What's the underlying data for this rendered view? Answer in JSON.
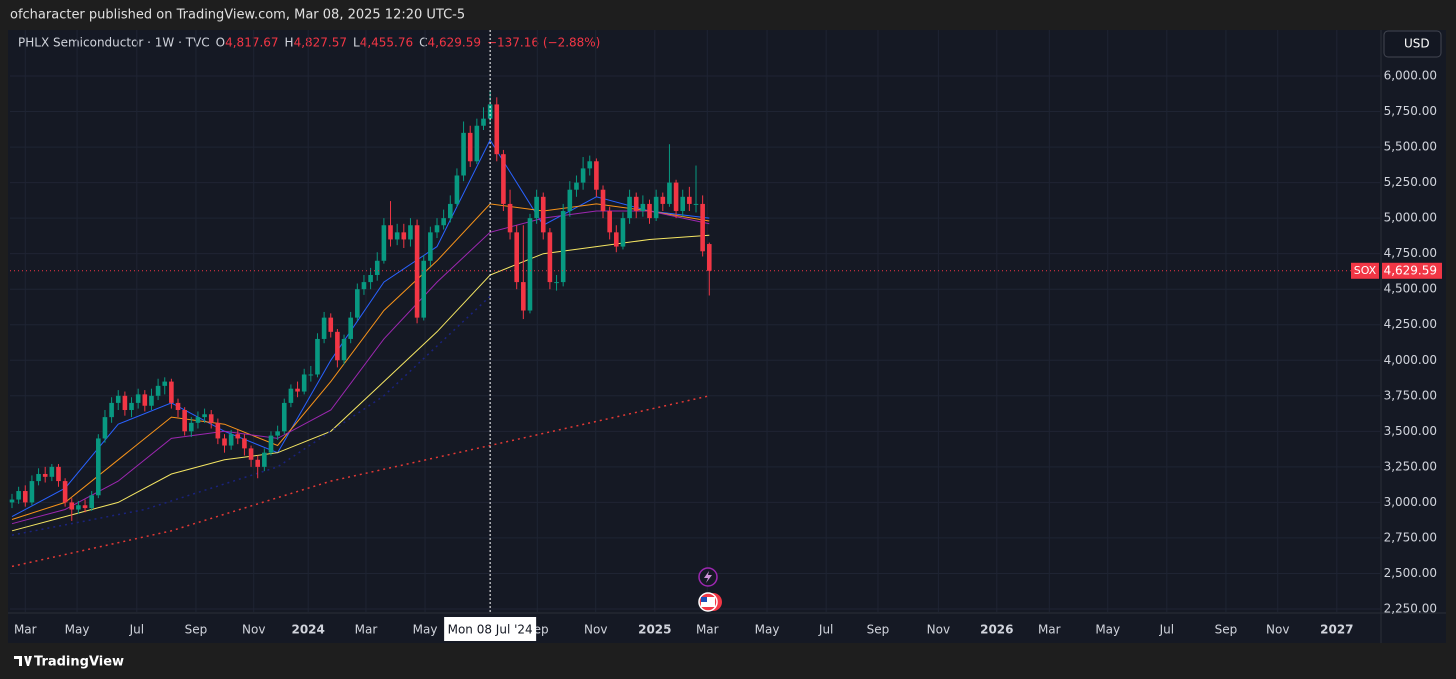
{
  "chart_data": {
    "type": "candlestick",
    "publisher": "ofcharacter published on TradingView.com, Mar 08, 2025 12:20 UTC-5",
    "title": "PHLX Semiconductor · 1W · TVC",
    "legend_values": [
      {
        "label": "O",
        "value": "4,817.67"
      },
      {
        "label": "H",
        "value": "4,827.57"
      },
      {
        "label": "L",
        "value": "4,455.76"
      },
      {
        "label": "C",
        "value": "4,629.59"
      },
      {
        "label": "",
        "value": "−137.16 (−2.88%)"
      }
    ],
    "currency": "USD",
    "symbol": "SOX",
    "crosshair": {
      "x": 72,
      "label": "Mon 08 Jul '24"
    },
    "brand": "TradingView",
    "up_color": "#089981",
    "down_color": "#f23645",
    "open": [
      3000,
      3020,
      3080,
      3000,
      3150,
      3200,
      3180,
      3250,
      3150,
      3000,
      2950,
      2980,
      2960,
      3050,
      3450,
      3600,
      3700,
      3750,
      3650,
      3700,
      3760,
      3680,
      3750,
      3820,
      3850,
      3700,
      3650,
      3500,
      3560,
      3600,
      3620,
      3560,
      3450,
      3400,
      3480,
      3450,
      3380,
      3300,
      3250,
      3350,
      3470,
      3500,
      3700,
      3800,
      3780,
      3900,
      3900,
      4150,
      4300,
      4200,
      4000,
      4150,
      4300,
      4500,
      4550,
      4600,
      4700,
      4950,
      4850,
      4900,
      4850,
      4950,
      4300,
      4700,
      4900,
      4950,
      5000,
      5100,
      5300,
      5600,
      5400,
      5650,
      5700,
      5800,
      5450,
      5100,
      4900,
      4550,
      4350,
      5000,
      5150,
      4900,
      4550,
      4550,
      5050,
      5200,
      5250,
      5350,
      5400,
      5200,
      5050,
      4900,
      4800,
      5000,
      5150,
      5050,
      5100,
      5000,
      5150,
      5100,
      5250,
      5050,
      5150,
      5100,
      5100,
      4817.67
    ],
    "high": [
      3060,
      3110,
      3120,
      3190,
      3240,
      3250,
      3270,
      3270,
      3170,
      3030,
      3010,
      3020,
      3080,
      3480,
      3650,
      3740,
      3790,
      3780,
      3740,
      3800,
      3790,
      3800,
      3870,
      3880,
      3870,
      3730,
      3670,
      3600,
      3640,
      3660,
      3650,
      3590,
      3480,
      3510,
      3510,
      3480,
      3400,
      3330,
      3380,
      3500,
      3540,
      3730,
      3830,
      3850,
      3940,
      3960,
      4190,
      4340,
      4330,
      4220,
      4180,
      4340,
      4540,
      4600,
      4650,
      4760,
      5000,
      5120,
      4960,
      4960,
      5000,
      4990,
      4740,
      4940,
      5000,
      5060,
      5160,
      5350,
      5680,
      5650,
      5700,
      5780,
      5900,
      5850,
      5480,
      5200,
      4950,
      4950,
      5030,
      5200,
      5180,
      4930,
      4600,
      5100,
      5260,
      5300,
      5430,
      5440,
      5420,
      5230,
      5080,
      4950,
      5040,
      5200,
      5180,
      5160,
      5130,
      5200,
      5180,
      5520,
      5270,
      5200,
      5220,
      5370,
      5160,
      4827.57
    ],
    "low": [
      2960,
      2990,
      2970,
      2980,
      3120,
      3140,
      3150,
      3110,
      2970,
      2870,
      2920,
      2930,
      2940,
      3030,
      3420,
      3560,
      3650,
      3610,
      3600,
      3660,
      3640,
      3650,
      3720,
      3760,
      3660,
      3600,
      3470,
      3460,
      3520,
      3560,
      3520,
      3410,
      3350,
      3370,
      3410,
      3330,
      3250,
      3170,
      3220,
      3330,
      3440,
      3480,
      3670,
      3740,
      3760,
      3850,
      3880,
      4120,
      4160,
      3950,
      3970,
      4120,
      4280,
      4460,
      4500,
      4560,
      4680,
      4800,
      4810,
      4790,
      4800,
      4260,
      4280,
      4660,
      4860,
      4920,
      4970,
      5080,
      5260,
      5360,
      5380,
      5620,
      5660,
      5400,
      5050,
      4850,
      4500,
      4290,
      4330,
      4960,
      4850,
      4500,
      4490,
      4520,
      5010,
      5150,
      5200,
      5300,
      5150,
      5000,
      4850,
      4760,
      4780,
      4960,
      5000,
      5010,
      4960,
      4980,
      5050,
      5080,
      5000,
      5010,
      5050,
      5040,
      4730,
      4455.76
    ],
    "close": [
      3020,
      3080,
      3000,
      3150,
      3200,
      3180,
      3250,
      3150,
      3000,
      2950,
      2980,
      2960,
      3050,
      3450,
      3600,
      3700,
      3750,
      3650,
      3700,
      3760,
      3680,
      3750,
      3820,
      3850,
      3700,
      3650,
      3500,
      3560,
      3600,
      3620,
      3560,
      3450,
      3400,
      3480,
      3450,
      3380,
      3300,
      3250,
      3350,
      3470,
      3500,
      3700,
      3800,
      3780,
      3900,
      3900,
      4150,
      4300,
      4200,
      4000,
      4150,
      4300,
      4500,
      4550,
      4600,
      4700,
      4950,
      4850,
      4900,
      4850,
      4950,
      4300,
      4700,
      4900,
      4950,
      5000,
      5100,
      5300,
      5600,
      5400,
      5650,
      5700,
      5800,
      5450,
      5100,
      4900,
      4550,
      4350,
      5000,
      5150,
      4900,
      4550,
      4550,
      5050,
      5200,
      5250,
      5350,
      5400,
      5200,
      5050,
      4900,
      4800,
      5000,
      5150,
      5050,
      5100,
      5000,
      5150,
      5100,
      5250,
      5050,
      5150,
      5100,
      5100,
      4766.75,
      4629.59
    ],
    "lines": [
      {
        "color": "#2962ff",
        "dash": false,
        "x": [
          0,
          8,
          16,
          24,
          32,
          40,
          48,
          56,
          64,
          72,
          80,
          88,
          96,
          105
        ],
        "values": [
          2900,
          3100,
          3550,
          3700,
          3500,
          3350,
          4000,
          4550,
          4800,
          5550,
          4950,
          5150,
          5050,
          5000
        ]
      },
      {
        "color": "#f7931a",
        "dash": false,
        "x": [
          0,
          8,
          16,
          24,
          32,
          40,
          48,
          56,
          64,
          72,
          80,
          88,
          96,
          105
        ],
        "values": [
          2880,
          3000,
          3300,
          3600,
          3550,
          3400,
          3850,
          4350,
          4700,
          5100,
          5050,
          5100,
          5050,
          4980
        ]
      },
      {
        "color": "#9c27b0",
        "dash": false,
        "x": [
          0,
          8,
          16,
          24,
          32,
          40,
          48,
          56,
          64,
          72,
          80,
          88,
          96,
          105
        ],
        "values": [
          2850,
          2950,
          3150,
          3450,
          3500,
          3450,
          3650,
          4150,
          4550,
          4900,
          5000,
          5050,
          5050,
          4960
        ]
      },
      {
        "color": "#f5e663",
        "dash": false,
        "x": [
          0,
          8,
          16,
          24,
          32,
          40,
          48,
          56,
          64,
          72,
          80,
          88,
          96,
          105
        ],
        "values": [
          2800,
          2900,
          3000,
          3200,
          3300,
          3350,
          3500,
          3850,
          4200,
          4600,
          4750,
          4800,
          4850,
          4880
        ]
      },
      {
        "color": "#1a237e",
        "dash": true,
        "x": [
          0,
          20,
          40,
          56,
          72
        ],
        "values": [
          2770,
          2950,
          3250,
          3750,
          4450
        ]
      },
      {
        "color": "#e53935",
        "dash": true,
        "x": [
          0,
          24,
          48,
          72,
          105
        ],
        "values": [
          2550,
          2800,
          3150,
          3400,
          3750
        ]
      }
    ],
    "ylim": [
      2100,
      6250
    ],
    "yticks": [
      {
        "value": 2250,
        "label": "2,250.00"
      },
      {
        "value": 2500,
        "label": "2,500.00"
      },
      {
        "value": 2750,
        "label": "2,750.00"
      },
      {
        "value": 3000,
        "label": "3,000.00"
      },
      {
        "value": 3250,
        "label": "3,250.00"
      },
      {
        "value": 3500,
        "label": "3,500.00"
      },
      {
        "value": 3750,
        "label": "3,750.00"
      },
      {
        "value": 4000,
        "label": "4,000.00"
      },
      {
        "value": 4250,
        "label": "4,250.00"
      },
      {
        "value": 4500,
        "label": "4,500.00"
      },
      {
        "value": 4750,
        "label": "4,750.00"
      },
      {
        "value": 5000,
        "label": "5,000.00"
      },
      {
        "value": 5250,
        "label": "5,250.00"
      },
      {
        "value": 5500,
        "label": "5,500.00"
      },
      {
        "value": 5750,
        "label": "5,750.00"
      },
      {
        "value": 6000,
        "label": "6,000.00"
      }
    ],
    "xlim": [
      -0.3,
      206
    ],
    "xticks": [
      {
        "value": 2,
        "label": "Mar"
      },
      {
        "value": 9.8,
        "label": "May"
      },
      {
        "value": 18.8,
        "label": "Jul"
      },
      {
        "value": 27.7,
        "label": "Sep"
      },
      {
        "value": 36.4,
        "label": "Nov"
      },
      {
        "value": 44.6,
        "label": "2024"
      },
      {
        "value": 53.3,
        "label": "Mar"
      },
      {
        "value": 62.2,
        "label": "May"
      },
      {
        "value": 79.1,
        "label": "Sep"
      },
      {
        "value": 87.9,
        "label": "Nov"
      },
      {
        "value": 96.8,
        "label": "2025"
      },
      {
        "value": 104.7,
        "label": "Mar"
      },
      {
        "value": 113.7,
        "label": "May"
      },
      {
        "value": 122.6,
        "label": "Jul"
      },
      {
        "value": 130.4,
        "label": "Sep"
      },
      {
        "value": 139.5,
        "label": "Nov"
      },
      {
        "value": 148.3,
        "label": "2026"
      },
      {
        "value": 156.2,
        "label": "Mar"
      },
      {
        "value": 165,
        "label": "May"
      },
      {
        "value": 173.9,
        "label": "Jul"
      },
      {
        "value": 182.8,
        "label": "Sep"
      },
      {
        "value": 190.6,
        "label": "Nov"
      },
      {
        "value": 199.5,
        "label": "2027"
      }
    ],
    "grid": true
  }
}
